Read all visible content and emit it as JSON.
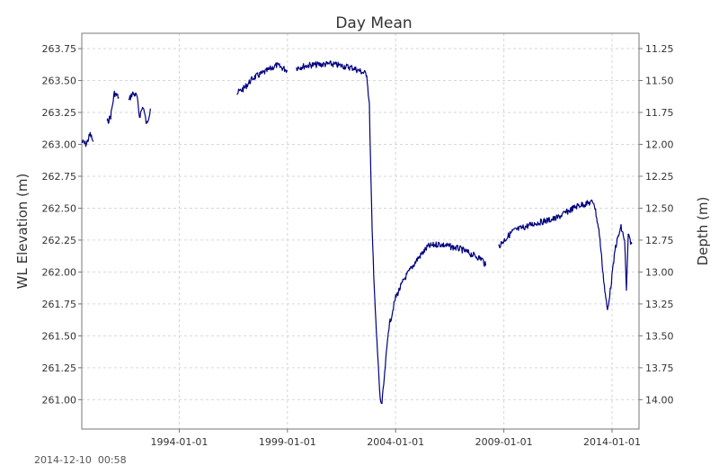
{
  "chart_data": {
    "type": "line",
    "title": "Day Mean",
    "ylabel": "WL Elevation (m)",
    "ylabel_right": "Depth (m)",
    "xlabel": "",
    "x_range": [
      "1989-07-01",
      "2015-04-01"
    ],
    "ylim": [
      260.77,
      263.87
    ],
    "ylim_right": [
      14.23,
      11.13
    ],
    "x_ticks": [
      {
        "date": "1994-01-01",
        "label": "1994-01-01"
      },
      {
        "date": "1999-01-01",
        "label": "1999-01-01"
      },
      {
        "date": "2004-01-01",
        "label": "2004-01-01"
      },
      {
        "date": "2009-01-01",
        "label": "2009-01-01"
      },
      {
        "date": "2014-01-01",
        "label": "2014-01-01"
      }
    ],
    "y_ticks_left": [
      "261.00",
      "261.25",
      "261.50",
      "261.75",
      "262.00",
      "262.25",
      "262.50",
      "262.75",
      "263.00",
      "263.25",
      "263.50",
      "263.75"
    ],
    "y_ticks_right": [
      "14.00",
      "13.75",
      "13.50",
      "13.25",
      "13.00",
      "12.75",
      "12.50",
      "12.25",
      "12.00",
      "11.75",
      "11.50",
      "11.25"
    ],
    "grid": true,
    "line_color": "#00007f",
    "series": [
      {
        "segments": [
          [
            [
              "1989-07-01",
              263.02
            ],
            [
              "1989-09-15",
              263.0
            ],
            [
              "1989-11-20",
              263.08
            ],
            [
              "1990-01-10",
              263.02
            ]
          ],
          [
            [
              "1990-09-01",
              263.17
            ],
            [
              "1990-11-01",
              263.22
            ],
            [
              "1991-01-01",
              263.4
            ],
            [
              "1991-03-15",
              263.37
            ]
          ],
          [
            [
              "1991-09-01",
              263.34
            ],
            [
              "1991-11-01",
              263.4
            ],
            [
              "1992-01-15",
              263.38
            ],
            [
              "1992-03-01",
              263.22
            ],
            [
              "1992-05-01",
              263.3
            ],
            [
              "1992-07-01",
              263.15
            ],
            [
              "1992-09-01",
              263.28
            ]
          ],
          [
            [
              "1996-09-01",
              263.4
            ],
            [
              "1997-01-01",
              263.44
            ],
            [
              "1997-06-01",
              263.52
            ],
            [
              "1998-01-01",
              263.57
            ],
            [
              "1998-07-01",
              263.62
            ],
            [
              "1999-01-01",
              263.58
            ]
          ],
          [
            [
              "1999-06-01",
              263.6
            ],
            [
              "2000-01-01",
              263.62
            ],
            [
              "2001-01-01",
              263.63
            ],
            [
              "2002-01-01",
              263.6
            ],
            [
              "2002-09-01",
              263.55
            ],
            [
              "2002-10-15",
              263.3
            ],
            [
              "2002-12-01",
              262.3
            ],
            [
              "2003-02-01",
              261.6
            ],
            [
              "2003-04-15",
              261.0
            ],
            [
              "2003-05-15",
              260.97
            ],
            [
              "2003-07-01",
              261.2
            ],
            [
              "2003-09-01",
              261.55
            ],
            [
              "2004-01-01",
              261.8
            ],
            [
              "2004-06-01",
              261.95
            ],
            [
              "2005-01-01",
              262.1
            ],
            [
              "2005-07-01",
              262.2
            ],
            [
              "2006-01-01",
              262.22
            ],
            [
              "2006-07-01",
              262.2
            ],
            [
              "2007-01-01",
              262.18
            ],
            [
              "2007-07-01",
              262.14
            ],
            [
              "2008-01-01",
              262.1
            ],
            [
              "2008-03-01",
              262.05
            ]
          ],
          [
            [
              "2008-10-01",
              262.2
            ],
            [
              "2009-06-01",
              262.32
            ],
            [
              "2010-06-01",
              262.38
            ],
            [
              "2011-06-01",
              262.42
            ],
            [
              "2012-06-01",
              262.52
            ],
            [
              "2013-03-01",
              262.55
            ],
            [
              "2013-06-01",
              262.3
            ],
            [
              "2013-09-01",
              261.85
            ],
            [
              "2013-10-15",
              261.7
            ],
            [
              "2013-12-01",
              261.85
            ],
            [
              "2014-03-01",
              262.2
            ],
            [
              "2014-06-01",
              262.35
            ],
            [
              "2014-08-01",
              262.25
            ],
            [
              "2014-09-01",
              261.85
            ],
            [
              "2014-10-01",
              262.28
            ],
            [
              "2014-12-01",
              262.22
            ]
          ]
        ]
      }
    ]
  },
  "timestamp": "2014-12-10  00:58"
}
